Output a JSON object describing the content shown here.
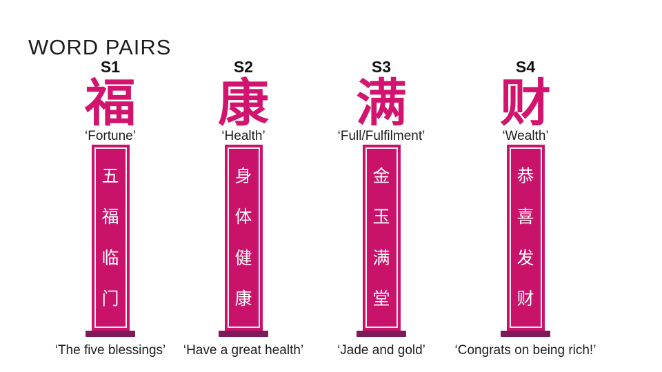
{
  "slide": {
    "title": "WORD PAIRS"
  },
  "colors": {
    "accent_pink": "#d2146e",
    "banner_pink": "#c9136a",
    "rod_purple": "#7e1a5a",
    "text_dark": "#1c1c1c"
  },
  "columns": [
    {
      "label": "S1",
      "character": "福",
      "meaning": "‘Fortune’",
      "banner_phrase": "五福临门",
      "banner_chars": [
        "五",
        "福",
        "临",
        "门"
      ],
      "caption": "‘The five blessings’"
    },
    {
      "label": "S2",
      "character": "康",
      "meaning": "‘Health’",
      "banner_phrase": "身体健康",
      "banner_chars": [
        "身",
        "体",
        "健",
        "康"
      ],
      "caption": "‘Have a great health’"
    },
    {
      "label": "S3",
      "character": "满",
      "meaning": "‘Full/Fulfilment’",
      "banner_phrase": "金玉满堂",
      "banner_chars": [
        "金",
        "玉",
        "满",
        "堂"
      ],
      "caption": "‘Jade and gold’"
    },
    {
      "label": "S4",
      "character": "财",
      "meaning": "‘Wealth’",
      "banner_phrase": "恭喜发财",
      "banner_chars": [
        "恭",
        "喜",
        "发",
        "财"
      ],
      "caption": "‘Congrats on being rich!’"
    }
  ]
}
